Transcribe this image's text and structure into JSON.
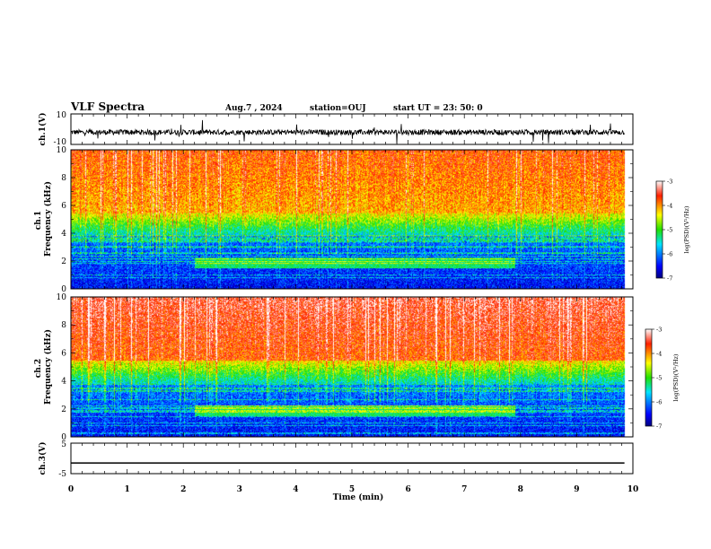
{
  "header": {
    "title": "VLF Spectra",
    "date": "Aug.7 , 2024",
    "station": "station=OUJ",
    "start": "start UT =  23: 50: 0"
  },
  "chart_data": [
    {
      "type": "line",
      "name": "ch1-waveform",
      "ylabel": "ch.1(V)",
      "ylim": [
        -10,
        10
      ],
      "yticks": [
        {
          "v": 10,
          "label": "10"
        },
        {
          "v": -10,
          "label": "-10"
        }
      ],
      "xlim": [
        0,
        10
      ],
      "baseline": -2
    },
    {
      "type": "heatmap",
      "name": "ch1-spectrogram",
      "ylabel": "ch.1\nFrequency (kHz)",
      "ylim": [
        0,
        10
      ],
      "yticks": [
        0,
        2,
        4,
        6,
        8,
        10
      ],
      "xlim": [
        0,
        10
      ],
      "data_end_min": 9.85,
      "colorbar": {
        "range": [
          -7,
          -3
        ],
        "ticks": [
          -3,
          -4,
          -5,
          -6,
          -7
        ],
        "label": "log(PSD)(V²/Hz)"
      }
    },
    {
      "type": "heatmap",
      "name": "ch2-spectrogram",
      "ylabel": "ch.2\nFrequency (kHz)",
      "ylim": [
        0,
        10
      ],
      "yticks": [
        0,
        2,
        4,
        6,
        8,
        10
      ],
      "xlim": [
        0,
        10
      ],
      "data_end_min": 9.85,
      "colorbar": {
        "range": [
          -7,
          -3
        ],
        "ticks": [
          -3,
          -4,
          -5,
          -6,
          -7
        ],
        "label": "log(PSD)(V²/Hz)"
      }
    },
    {
      "type": "line",
      "name": "ch3-waveform",
      "ylabel": "ch.3(V)",
      "ylim": [
        -5,
        5
      ],
      "yticks": [
        {
          "v": 5,
          "label": "5"
        },
        {
          "v": -5,
          "label": "-5"
        }
      ],
      "xlim": [
        0,
        10
      ],
      "value": -1.5
    }
  ],
  "xaxis": {
    "label": "Time (min)",
    "ticks": [
      0,
      1,
      2,
      3,
      4,
      5,
      6,
      7,
      8,
      9,
      10
    ]
  }
}
